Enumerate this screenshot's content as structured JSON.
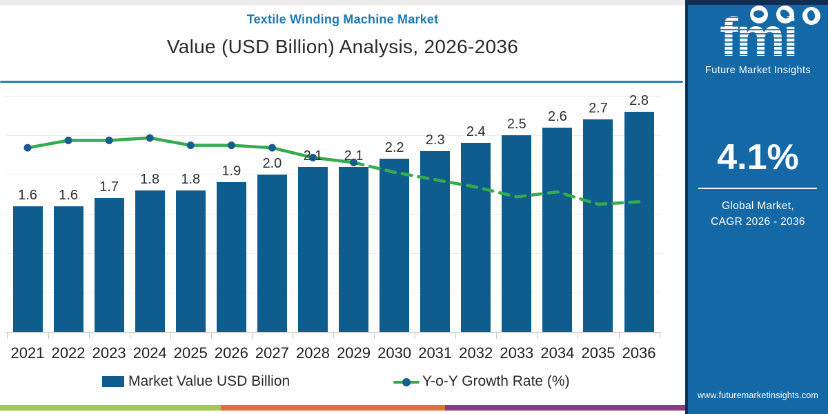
{
  "header": {
    "title": "Textile Winding Machine Market",
    "subtitle": "Value (USD Billion) Analysis, 2026-2036"
  },
  "chart_data": {
    "type": "bar",
    "title": "Textile Winding Machine Market",
    "subtitle": "Value (USD Billion) Analysis, 2026-2036",
    "categories": [
      "2021",
      "2022",
      "2023",
      "2024",
      "2025",
      "2026",
      "2027",
      "2028",
      "2029",
      "2030",
      "2031",
      "2032",
      "2033",
      "2034",
      "2035",
      "2036"
    ],
    "series": [
      {
        "name": "Market Value USD Billion",
        "type": "bar",
        "color": "#0e5d8e",
        "values": [
          1.6,
          1.6,
          1.7,
          1.8,
          1.8,
          1.9,
          2.0,
          2.1,
          2.1,
          2.2,
          2.3,
          2.4,
          2.5,
          2.6,
          2.7,
          2.8
        ]
      },
      {
        "name": "Y-o-Y Growth Rate (%)",
        "type": "line",
        "color": "#35ab4e",
        "marker_color": "#1a5c8c",
        "solid_until_index": 8,
        "values": [
          4.7,
          5.0,
          5.0,
          5.1,
          4.8,
          4.8,
          4.7,
          4.3,
          4.1,
          3.7,
          3.4,
          3.1,
          2.7,
          2.9,
          2.4,
          2.5
        ]
      }
    ],
    "ylim": [
      0,
      3
    ],
    "grid": "horizontal",
    "legend_position": "bottom",
    "bar_value_labels": true
  },
  "sidebar": {
    "logo_text": "fmi",
    "logo_subtext": "Future Market Insights",
    "cagr_value": "4.1%",
    "cagr_label_line1": "Global Market,",
    "cagr_label_line2": "CAGR 2026 - 2036",
    "website": "www.futuremarketinsights.com",
    "background_color": "#1568a6"
  },
  "footer_strip": {
    "colors": [
      "#a4c653",
      "#e16f3c",
      "#8a3c82"
    ]
  }
}
